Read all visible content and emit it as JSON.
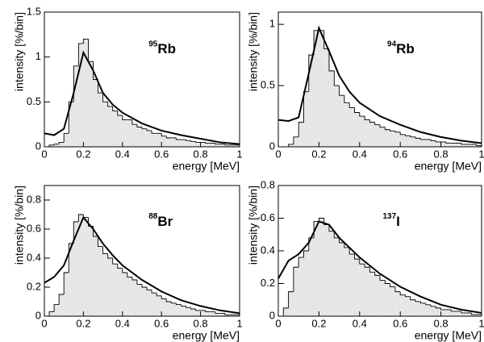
{
  "chart_data": [
    {
      "type": "histogram",
      "ylabel": "intensity [%/bin]",
      "xlabel": "energy [MeV]",
      "isotope": {
        "mass": "95",
        "symbol": "Rb"
      },
      "bins": [
        0,
        0.025,
        0.05,
        0.075,
        0.1,
        0.125,
        0.15,
        0.175,
        0.2,
        0.225,
        0.25,
        0.275,
        0.3,
        0.325,
        0.35,
        0.375,
        0.4,
        0.425,
        0.45,
        0.475,
        0.5,
        0.525,
        0.55,
        0.575,
        0.6,
        0.625,
        0.65,
        0.675,
        0.7,
        0.725,
        0.75,
        0.775,
        0.8,
        0.825,
        0.85,
        0.875,
        0.9,
        0.925,
        0.95,
        0.975,
        1
      ],
      "values": [
        0,
        0.02,
        0.03,
        0.05,
        0.15,
        0.5,
        0.9,
        1.15,
        1.2,
        0.95,
        0.75,
        0.6,
        0.5,
        0.45,
        0.4,
        0.35,
        0.3,
        0.3,
        0.25,
        0.22,
        0.2,
        0.18,
        0.15,
        0.15,
        0.12,
        0.1,
        0.1,
        0.08,
        0.08,
        0.07,
        0.06,
        0.05,
        0.05,
        0.04,
        0.04,
        0.03,
        0.03,
        0.02,
        0.02,
        0.02
      ],
      "curve_x": [
        0,
        0.05,
        0.1,
        0.15,
        0.2,
        0.25,
        0.3,
        0.35,
        0.4,
        0.5,
        0.6,
        0.7,
        0.8,
        0.9,
        1
      ],
      "curve_y": [
        0.15,
        0.13,
        0.2,
        0.6,
        1.05,
        0.85,
        0.6,
        0.47,
        0.38,
        0.26,
        0.18,
        0.13,
        0.09,
        0.05,
        0.03
      ],
      "fill": "#e6e6e6",
      "color": "#000000",
      "xlim": [
        0,
        1
      ],
      "xticks": [
        0,
        0.2,
        0.4,
        0.6,
        0.8,
        1
      ],
      "ylim": [
        0,
        1.5
      ],
      "yticks": [
        0,
        0.5,
        1,
        1.5
      ]
    },
    {
      "type": "histogram",
      "ylabel": "intensity [%/bin]",
      "xlabel": "energy [MeV]",
      "isotope": {
        "mass": "94",
        "symbol": "Rb"
      },
      "bins": [
        0,
        0.025,
        0.05,
        0.075,
        0.1,
        0.125,
        0.15,
        0.175,
        0.2,
        0.225,
        0.25,
        0.275,
        0.3,
        0.325,
        0.35,
        0.375,
        0.4,
        0.425,
        0.45,
        0.475,
        0.5,
        0.525,
        0.55,
        0.575,
        0.6,
        0.625,
        0.65,
        0.675,
        0.7,
        0.725,
        0.75,
        0.775,
        0.8,
        0.825,
        0.85,
        0.875,
        0.9,
        0.925,
        0.95,
        0.975,
        1
      ],
      "values": [
        0,
        0,
        0.02,
        0.08,
        0.2,
        0.45,
        0.75,
        0.95,
        0.95,
        0.8,
        0.62,
        0.5,
        0.42,
        0.36,
        0.32,
        0.28,
        0.25,
        0.22,
        0.2,
        0.18,
        0.16,
        0.14,
        0.13,
        0.12,
        0.1,
        0.09,
        0.08,
        0.07,
        0.06,
        0.06,
        0.05,
        0.04,
        0.04,
        0.03,
        0.03,
        0.03,
        0.02,
        0.02,
        0.02,
        0.01
      ],
      "curve_x": [
        0,
        0.05,
        0.1,
        0.15,
        0.2,
        0.25,
        0.3,
        0.35,
        0.4,
        0.5,
        0.6,
        0.7,
        0.8,
        0.9,
        1
      ],
      "curve_y": [
        0.22,
        0.21,
        0.24,
        0.6,
        0.97,
        0.78,
        0.58,
        0.45,
        0.36,
        0.25,
        0.18,
        0.12,
        0.08,
        0.05,
        0.03
      ],
      "fill": "#e6e6e6",
      "color": "#000000",
      "xlim": [
        0,
        1
      ],
      "xticks": [
        0,
        0.2,
        0.4,
        0.6,
        0.8,
        1
      ],
      "ylim": [
        0,
        1.1
      ],
      "yticks": [
        0,
        0.5,
        1
      ]
    },
    {
      "type": "histogram",
      "ylabel": "intensity [%/bin]",
      "xlabel": "energy [MeV]",
      "isotope": {
        "mass": "88",
        "symbol": "Br"
      },
      "bins": [
        0,
        0.025,
        0.05,
        0.075,
        0.1,
        0.125,
        0.15,
        0.175,
        0.2,
        0.225,
        0.25,
        0.275,
        0.3,
        0.325,
        0.35,
        0.375,
        0.4,
        0.425,
        0.45,
        0.475,
        0.5,
        0.525,
        0.55,
        0.575,
        0.6,
        0.625,
        0.65,
        0.675,
        0.7,
        0.725,
        0.75,
        0.775,
        0.8,
        0.825,
        0.85,
        0.875,
        0.9,
        0.925,
        0.95,
        0.975,
        1
      ],
      "values": [
        0,
        0.03,
        0.08,
        0.15,
        0.3,
        0.5,
        0.65,
        0.7,
        0.68,
        0.62,
        0.55,
        0.48,
        0.43,
        0.4,
        0.36,
        0.33,
        0.3,
        0.27,
        0.25,
        0.22,
        0.2,
        0.18,
        0.16,
        0.14,
        0.12,
        0.1,
        0.09,
        0.08,
        0.07,
        0.06,
        0.05,
        0.04,
        0.04,
        0.03,
        0.03,
        0.02,
        0.02,
        0.01,
        0.01,
        0.01
      ],
      "curve_x": [
        0,
        0.05,
        0.1,
        0.15,
        0.2,
        0.25,
        0.3,
        0.35,
        0.4,
        0.5,
        0.6,
        0.7,
        0.8,
        0.9,
        1
      ],
      "curve_y": [
        0.23,
        0.27,
        0.35,
        0.52,
        0.68,
        0.6,
        0.5,
        0.42,
        0.35,
        0.25,
        0.17,
        0.11,
        0.07,
        0.04,
        0.02
      ],
      "fill": "#e6e6e6",
      "color": "#000000",
      "xlim": [
        0,
        1
      ],
      "xticks": [
        0,
        0.2,
        0.4,
        0.6,
        0.8,
        1
      ],
      "ylim": [
        0,
        0.9
      ],
      "yticks": [
        0,
        0.2,
        0.4,
        0.6,
        0.8
      ]
    },
    {
      "type": "histogram",
      "ylabel": "intensity [%/bin]",
      "xlabel": "energy [MeV]",
      "isotope": {
        "mass": "137",
        "symbol": "I"
      },
      "bins": [
        0,
        0.025,
        0.05,
        0.075,
        0.1,
        0.125,
        0.15,
        0.175,
        0.2,
        0.225,
        0.25,
        0.275,
        0.3,
        0.325,
        0.35,
        0.375,
        0.4,
        0.425,
        0.45,
        0.475,
        0.5,
        0.525,
        0.55,
        0.575,
        0.6,
        0.625,
        0.65,
        0.675,
        0.7,
        0.725,
        0.75,
        0.775,
        0.8,
        0.825,
        0.85,
        0.875,
        0.9,
        0.925,
        0.95,
        0.975,
        1
      ],
      "values": [
        0,
        0.05,
        0.15,
        0.3,
        0.36,
        0.4,
        0.48,
        0.58,
        0.6,
        0.56,
        0.52,
        0.48,
        0.45,
        0.42,
        0.38,
        0.35,
        0.32,
        0.3,
        0.27,
        0.25,
        0.22,
        0.2,
        0.18,
        0.15,
        0.13,
        0.12,
        0.1,
        0.09,
        0.08,
        0.07,
        0.06,
        0.05,
        0.04,
        0.04,
        0.03,
        0.03,
        0.02,
        0.02,
        0.01,
        0.01
      ],
      "curve_x": [
        0,
        0.05,
        0.1,
        0.15,
        0.2,
        0.25,
        0.3,
        0.35,
        0.4,
        0.5,
        0.6,
        0.7,
        0.8,
        0.9,
        1
      ],
      "curve_y": [
        0.23,
        0.34,
        0.38,
        0.45,
        0.58,
        0.56,
        0.48,
        0.42,
        0.36,
        0.26,
        0.18,
        0.12,
        0.07,
        0.04,
        0.02
      ],
      "fill": "#e6e6e6",
      "color": "#000000",
      "xlim": [
        0,
        1
      ],
      "xticks": [
        0,
        0.2,
        0.4,
        0.6,
        0.8,
        1
      ],
      "ylim": [
        0,
        0.8
      ],
      "yticks": [
        0,
        0.2,
        0.4,
        0.6,
        0.8
      ]
    }
  ]
}
